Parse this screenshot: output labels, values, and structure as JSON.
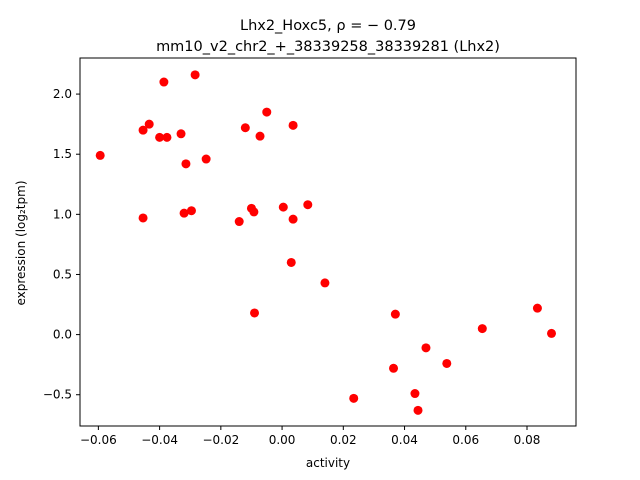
{
  "chart_data": {
    "type": "scatter",
    "title_line1": "Lhx2_Hoxc5, ρ = − 0.79",
    "title_line2": "mm10_v2_chr2_+_38339258_38339281 (Lhx2)",
    "xlabel": "activity",
    "ylabel": "expression (log₂tpm)",
    "xlim": [
      -0.066,
      0.096
    ],
    "ylim": [
      -0.76,
      2.3
    ],
    "xticks": [
      -0.06,
      -0.04,
      -0.02,
      0.0,
      0.02,
      0.04,
      0.06,
      0.08
    ],
    "xtick_labels": [
      "−0.06",
      "−0.04",
      "−0.02",
      "0.00",
      "0.02",
      "0.04",
      "0.06",
      "0.08"
    ],
    "yticks": [
      -0.5,
      0.0,
      0.5,
      1.0,
      1.5,
      2.0
    ],
    "ytick_labels": [
      "−0.5",
      "0.0",
      "0.5",
      "1.0",
      "1.5",
      "2.0"
    ],
    "grid": false,
    "marker_color": "#ff0000",
    "points": [
      {
        "x": -0.0594,
        "y": 1.49
      },
      {
        "x": -0.0454,
        "y": 1.7
      },
      {
        "x": -0.0434,
        "y": 1.75
      },
      {
        "x": -0.04,
        "y": 1.64
      },
      {
        "x": -0.0376,
        "y": 1.64
      },
      {
        "x": -0.0386,
        "y": 2.1
      },
      {
        "x": -0.0284,
        "y": 2.16
      },
      {
        "x": -0.0454,
        "y": 0.97
      },
      {
        "x": -0.033,
        "y": 1.67
      },
      {
        "x": -0.0314,
        "y": 1.42
      },
      {
        "x": -0.032,
        "y": 1.01
      },
      {
        "x": -0.0296,
        "y": 1.03
      },
      {
        "x": -0.0248,
        "y": 1.46
      },
      {
        "x": -0.014,
        "y": 0.94
      },
      {
        "x": -0.012,
        "y": 1.72
      },
      {
        "x": -0.01,
        "y": 1.05
      },
      {
        "x": -0.0092,
        "y": 1.02
      },
      {
        "x": -0.0072,
        "y": 1.65
      },
      {
        "x": -0.005,
        "y": 1.85
      },
      {
        "x": -0.009,
        "y": 0.18
      },
      {
        "x": 0.0004,
        "y": 1.06
      },
      {
        "x": 0.0036,
        "y": 1.74
      },
      {
        "x": 0.0036,
        "y": 0.96
      },
      {
        "x": 0.0084,
        "y": 1.08
      },
      {
        "x": 0.003,
        "y": 0.6
      },
      {
        "x": 0.014,
        "y": 0.43
      },
      {
        "x": 0.0234,
        "y": -0.53
      },
      {
        "x": 0.0364,
        "y": -0.28
      },
      {
        "x": 0.037,
        "y": 0.17
      },
      {
        "x": 0.0434,
        "y": -0.49
      },
      {
        "x": 0.0444,
        "y": -0.63
      },
      {
        "x": 0.047,
        "y": -0.11
      },
      {
        "x": 0.0538,
        "y": -0.24
      },
      {
        "x": 0.0654,
        "y": 0.05
      },
      {
        "x": 0.0834,
        "y": 0.22
      },
      {
        "x": 0.088,
        "y": 0.01
      }
    ]
  }
}
